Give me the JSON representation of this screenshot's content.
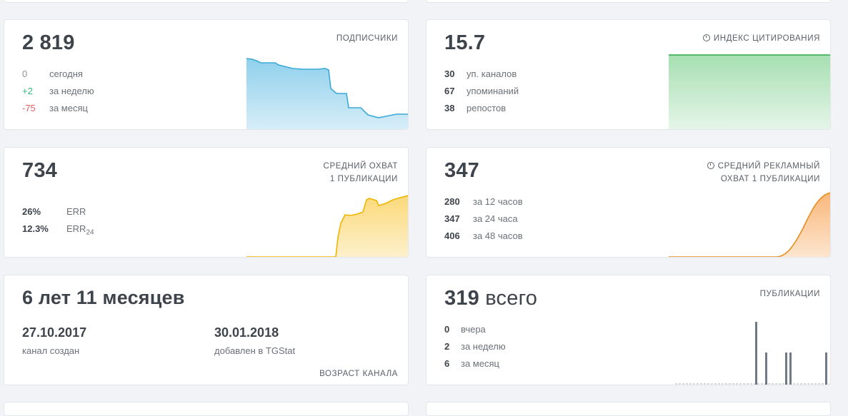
{
  "colors": {
    "green": "#2ebd7a",
    "red": "#e65c5c",
    "blue": "#3aa9d8",
    "orange": "#e98c1c",
    "yellow": "#f0b400",
    "gray_bar": "#6e7a88"
  },
  "subscribers": {
    "value": "2 819",
    "label": "ПОДПИСЧИКИ",
    "rows": [
      {
        "num": "0",
        "text": "сегодня"
      },
      {
        "num": "+2",
        "text": "за неделю"
      },
      {
        "num": "-75",
        "text": "за месяц"
      }
    ]
  },
  "citation": {
    "value": "15.7",
    "label": "ИНДЕКС ЦИТИРОВАНИЯ",
    "icon": "clock-icon",
    "rows": [
      {
        "num": "30",
        "text": "уп. каналов"
      },
      {
        "num": "67",
        "text": "упоминаний"
      },
      {
        "num": "38",
        "text": "репостов"
      }
    ]
  },
  "reach": {
    "value": "734",
    "label_line1": "СРЕДНИЙ ОХВАТ",
    "label_line2": "1 ПУБЛИКАЦИИ",
    "rows": [
      {
        "num": "26%",
        "text": "ERR"
      },
      {
        "num": "12.3%",
        "text": "ERR",
        "sub": "24"
      }
    ]
  },
  "ad_reach": {
    "value": "347",
    "label_line1": "СРЕДНИЙ РЕКЛАМНЫЙ",
    "label_line2": "ОХВАТ 1 ПУБЛИКАЦИИ",
    "icon": "clock-icon",
    "rows": [
      {
        "num": "280",
        "text": "за 12 часов"
      },
      {
        "num": "347",
        "text": "за 24 часа"
      },
      {
        "num": "406",
        "text": "за 48 часов"
      }
    ]
  },
  "age": {
    "value": "6 лет 11 месяцев",
    "created_date": "27.10.2017",
    "created_label": "канал создан",
    "added_date": "30.01.2018",
    "added_label": "добавлен в TGStat",
    "label": "ВОЗРАСТ КАНАЛА"
  },
  "publications": {
    "value": "319",
    "value_suffix": "всего",
    "label": "ПУБЛИКАЦИИ",
    "rows": [
      {
        "num": "0",
        "text": "вчера"
      },
      {
        "num": "2",
        "text": "за неделю"
      },
      {
        "num": "6",
        "text": "за месяц"
      }
    ]
  }
}
